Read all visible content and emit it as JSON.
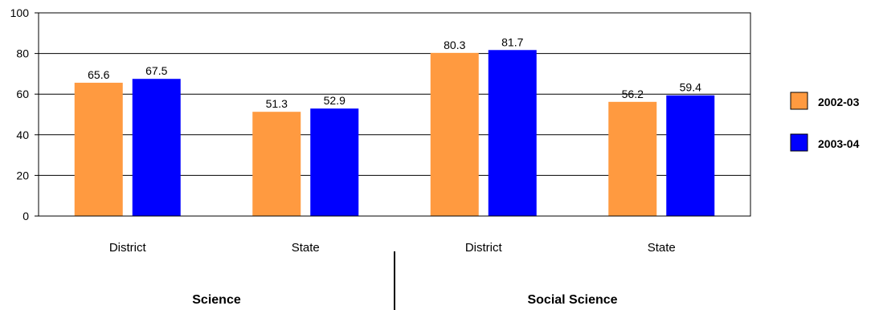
{
  "chart_data": {
    "type": "bar",
    "ylim": [
      0,
      100
    ],
    "yticks": [
      0,
      20,
      40,
      60,
      80,
      100
    ],
    "grid": true,
    "legend_position": "right",
    "categories": [
      "District",
      "State",
      "District",
      "State"
    ],
    "groups": [
      {
        "label": "Science",
        "categories": [
          "District",
          "State"
        ]
      },
      {
        "label": "Social Science",
        "categories": [
          "District",
          "State"
        ]
      }
    ],
    "series": [
      {
        "name": "2002-03",
        "color": "#FF9A40",
        "values": [
          65.6,
          51.3,
          80.3,
          56.2
        ]
      },
      {
        "name": "2003-04",
        "color": "#0000FF",
        "values": [
          67.5,
          52.9,
          81.7,
          59.4
        ]
      }
    ]
  }
}
